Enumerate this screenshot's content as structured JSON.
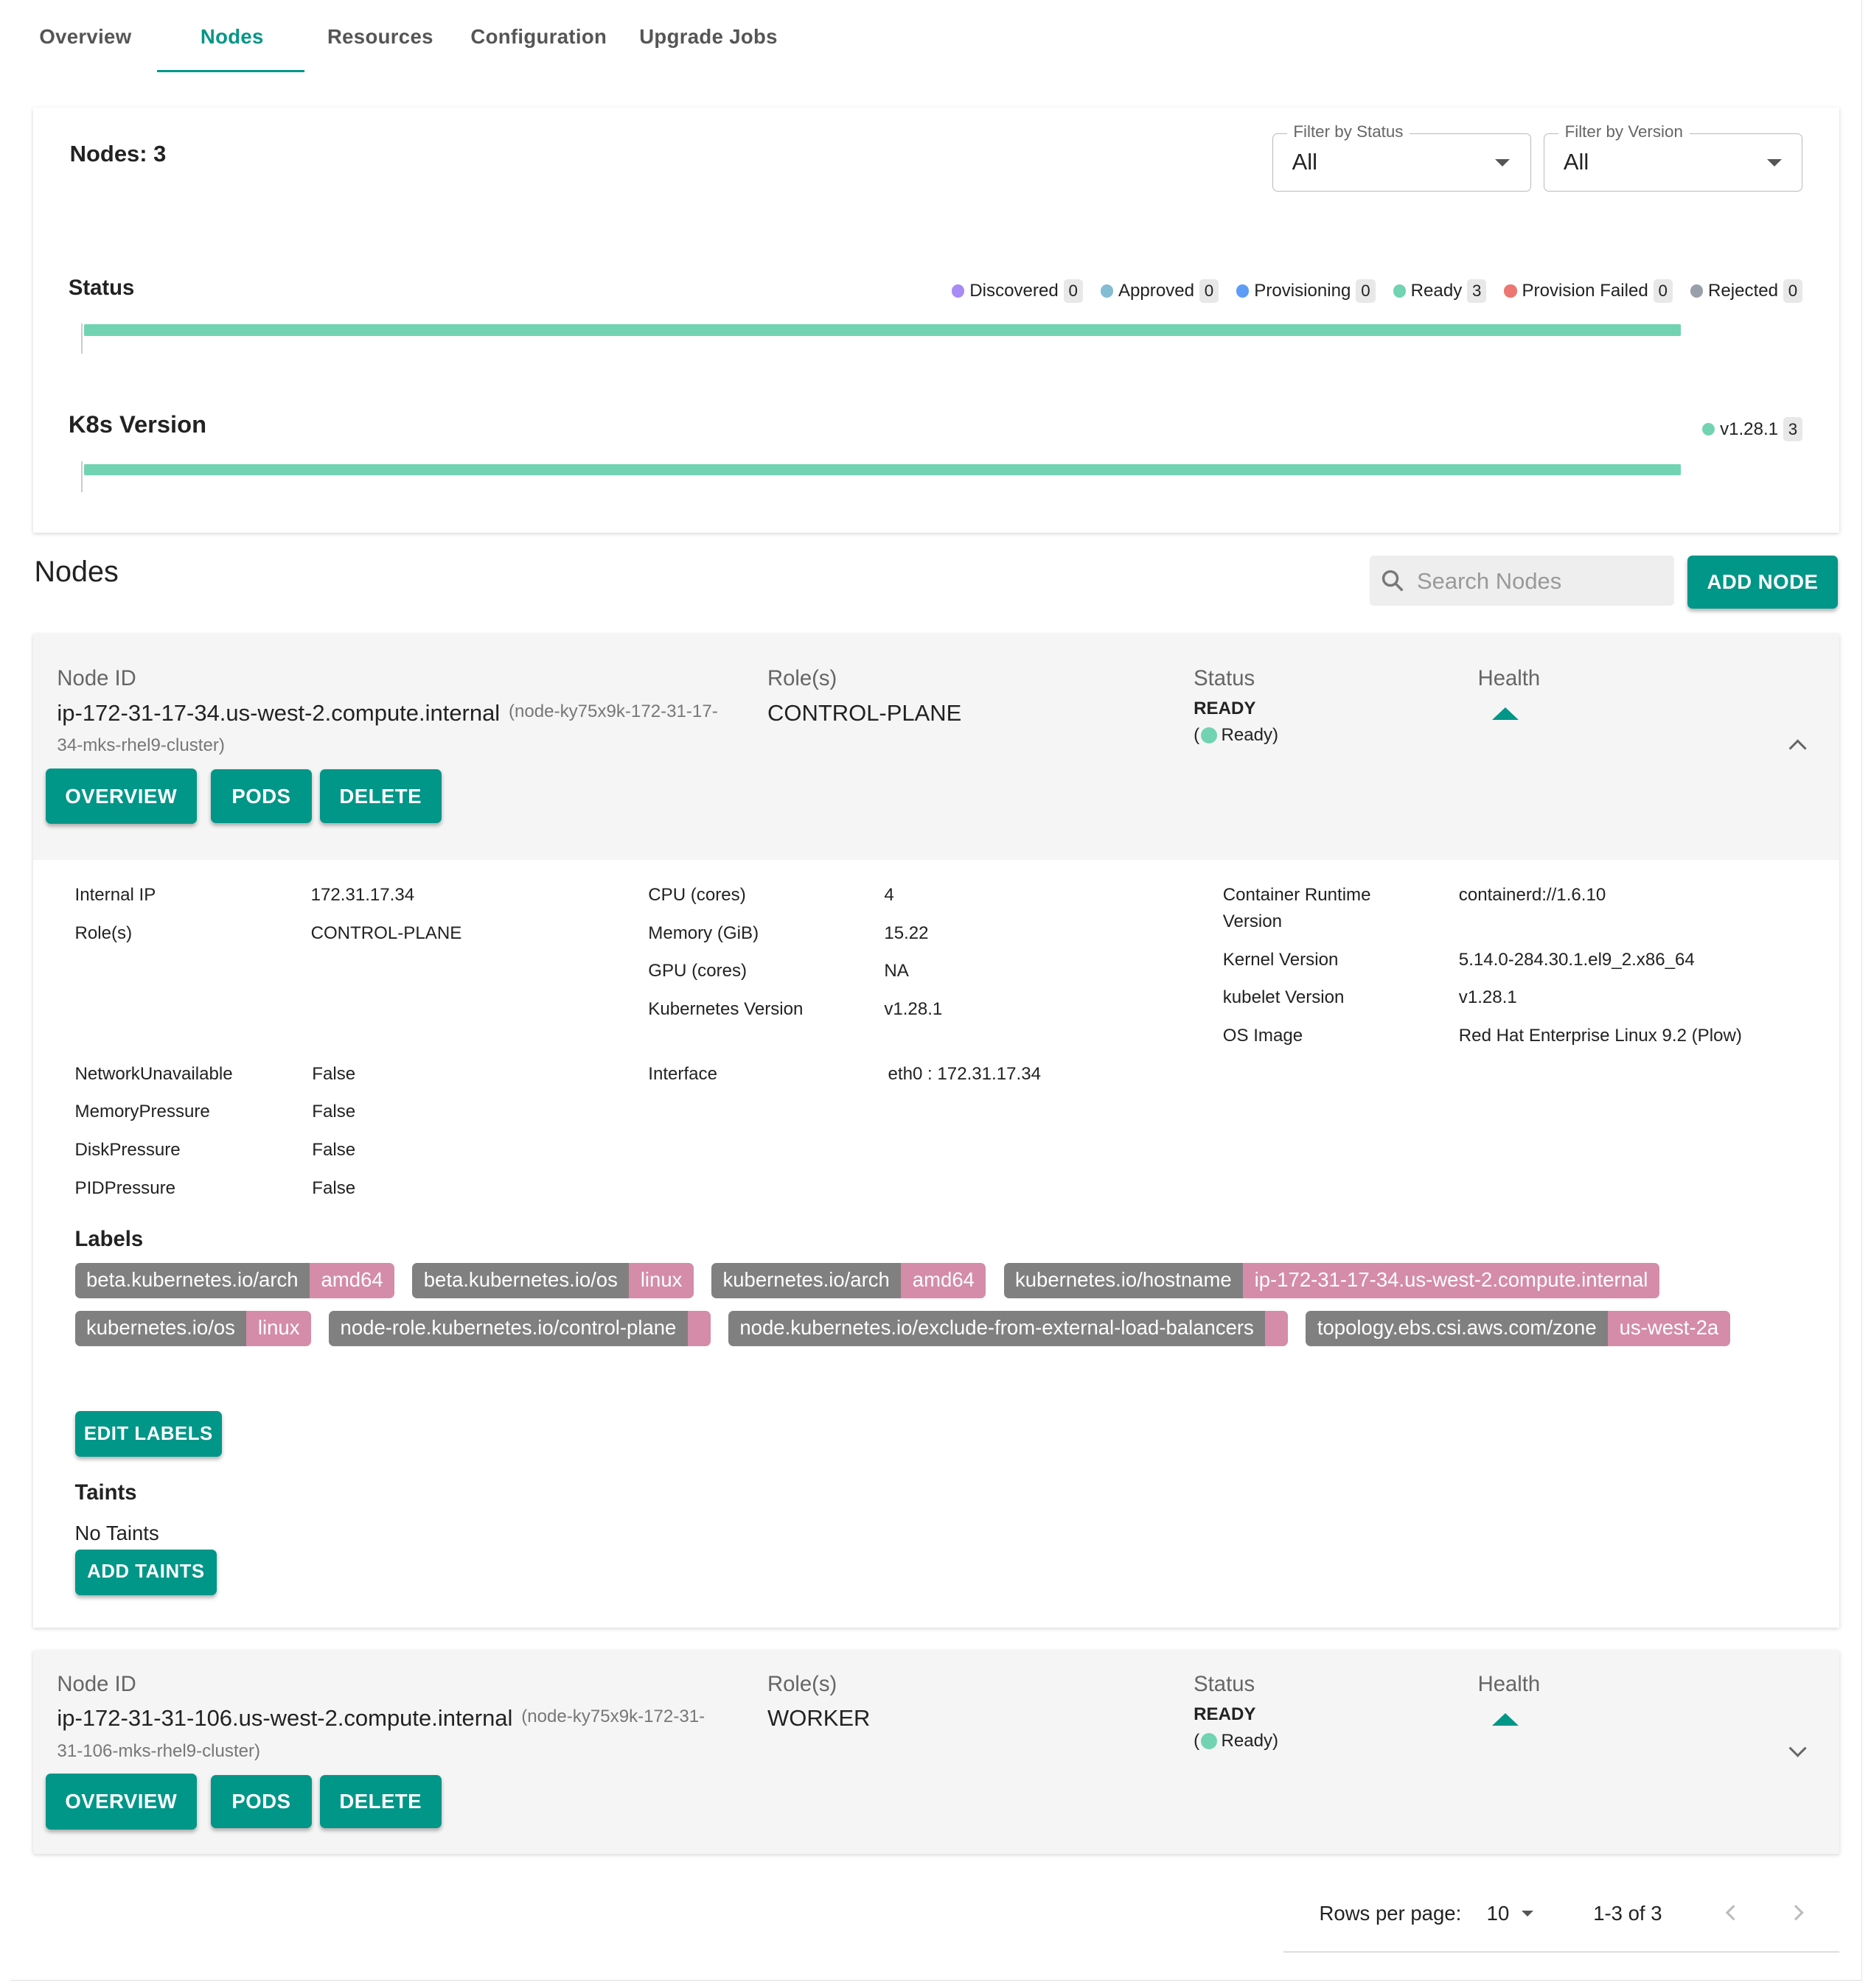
{
  "tabs": [
    "Overview",
    "Nodes",
    "Resources",
    "Configuration",
    "Upgrade Jobs"
  ],
  "active_tab": "Nodes",
  "summary": {
    "nodes_count": "Nodes: 3",
    "filter_status": {
      "label": "Filter by Status",
      "value": "All"
    },
    "filter_version": {
      "label": "Filter by Version",
      "value": "All"
    },
    "status_title": "Status",
    "status_legend": [
      {
        "name": "Discovered",
        "count": "0",
        "color": "#a98bf5"
      },
      {
        "name": "Approved",
        "count": "0",
        "color": "#83bcd3"
      },
      {
        "name": "Provisioning",
        "count": "0",
        "color": "#5e9cf6"
      },
      {
        "name": "Ready",
        "count": "3",
        "color": "#71d3b2"
      },
      {
        "name": "Provision Failed",
        "count": "0",
        "color": "#ec7672"
      },
      {
        "name": "Rejected",
        "count": "0",
        "color": "#9aa0aa"
      }
    ],
    "status_ready_fraction": 1.0,
    "version_title": "K8s Version",
    "version_legend": [
      {
        "name": "v1.28.1",
        "count": "3",
        "color": "#71d3b2"
      }
    ],
    "version_fraction": 1.0
  },
  "nodes_section": {
    "title": "Nodes",
    "search_placeholder": "Search Nodes",
    "add_node": "ADD NODE"
  },
  "columns": {
    "node_id": "Node ID",
    "roles": "Role(s)",
    "status": "Status",
    "health": "Health"
  },
  "buttons": {
    "overview": "OVERVIEW",
    "pods": "PODS",
    "delete": "DELETE",
    "edit_labels": "EDIT LABELS",
    "add_taints": "ADD TAINTS"
  },
  "nodes": [
    {
      "hostname": "ip-172-31-17-34.us-west-2.compute.internal",
      "sub_a": "(node-ky75x9k-172-31-17-",
      "sub_b": "34-mks-rhel9-cluster)",
      "role": "CONTROL-PLANE",
      "status": "READY",
      "status_open": "(",
      "status_detail": "Ready)",
      "expanded": true,
      "details": {
        "internal_ip": {
          "k": "Internal IP",
          "v": "172.31.17.34"
        },
        "roles": {
          "k": "Role(s)",
          "v": "CONTROL-PLANE"
        },
        "cpu": {
          "k": "CPU (cores)",
          "v": "4"
        },
        "memory": {
          "k": "Memory (GiB)",
          "v": "15.22"
        },
        "gpu": {
          "k": "GPU (cores)",
          "v": "NA"
        },
        "k8s": {
          "k": "Kubernetes Version",
          "v": "v1.28.1"
        },
        "runtime": {
          "k1": "Container Runtime",
          "k2": "Version",
          "v": "containerd://1.6.10"
        },
        "kernel": {
          "k": "Kernel Version",
          "v": "5.14.0-284.30.1.el9_2.x86_64"
        },
        "kubelet": {
          "k": "kubelet Version",
          "v": "v1.28.1"
        },
        "os": {
          "k": "OS Image",
          "v": "Red Hat Enterprise Linux 9.2 (Plow)"
        },
        "netun": {
          "k": "NetworkUnavailable",
          "v": "False"
        },
        "mem": {
          "k": "MemoryPressure",
          "v": "False"
        },
        "disk": {
          "k": "DiskPressure",
          "v": "False"
        },
        "pid": {
          "k": "PIDPressure",
          "v": "False"
        },
        "iface": {
          "k": "Interface",
          "v": "eth0 : 172.31.17.34"
        }
      },
      "labels_title": "Labels",
      "labels": [
        {
          "k": "beta.kubernetes.io/arch",
          "v": "amd64"
        },
        {
          "k": "beta.kubernetes.io/os",
          "v": "linux"
        },
        {
          "k": "kubernetes.io/arch",
          "v": "amd64"
        },
        {
          "k": "kubernetes.io/hostname",
          "v": "ip-172-31-17-34.us-west-2.compute.internal"
        },
        {
          "k": "kubernetes.io/os",
          "v": "linux"
        },
        {
          "k": "node-role.kubernetes.io/control-plane",
          "v": ""
        },
        {
          "k": "node.kubernetes.io/exclude-from-external-load-balancers",
          "v": ""
        },
        {
          "k": "topology.ebs.csi.aws.com/zone",
          "v": "us-west-2a"
        }
      ],
      "taints_title": "Taints",
      "taints_text": "No Taints"
    },
    {
      "hostname": "ip-172-31-31-106.us-west-2.compute.internal",
      "sub_a": "(node-ky75x9k-172-31-",
      "sub_b": "31-106-mks-rhel9-cluster)",
      "role": "WORKER",
      "status": "READY",
      "status_open": "(",
      "status_detail": "Ready)",
      "expanded": false
    }
  ],
  "pagination": {
    "rows_label": "Rows per page:",
    "rows_value": "10",
    "range": "1-3 of 3"
  }
}
